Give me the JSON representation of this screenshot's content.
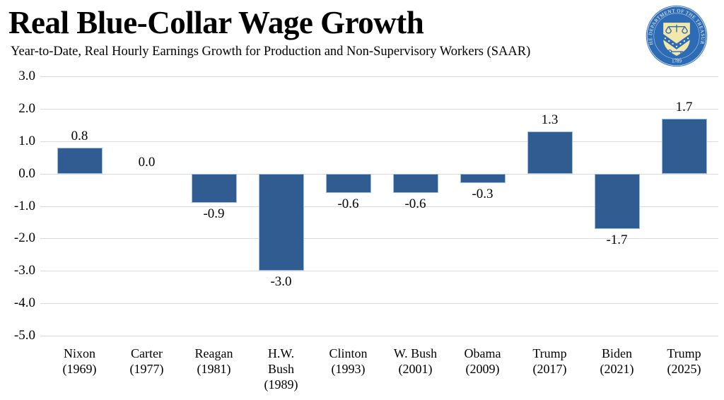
{
  "header": {
    "title": "Real Blue-Collar Wage Growth",
    "subtitle": "Year-to-Date, Real Hourly Earnings Growth for Production and Non-Supervisory Workers (SAAR)"
  },
  "seal": {
    "ring_text": "THE DEPARTMENT OF THE TREASURY",
    "year": "1789",
    "colors": {
      "disc": "#2d6cb5",
      "emblem": "#f3e7a9",
      "text": "#ffffff"
    }
  },
  "chart_data": {
    "type": "bar",
    "title": "Real Blue-Collar Wage Growth",
    "subtitle": "Year-to-Date, Real Hourly Earnings Growth for Production and Non-Supervisory Workers (SAAR)",
    "categories": [
      "Nixon\n(1969)",
      "Carter\n(1977)",
      "Reagan\n(1981)",
      "H.W.\nBush\n(1989)",
      "Clinton\n(1993)",
      "W. Bush\n(2001)",
      "Obama\n(2009)",
      "Trump\n(2017)",
      "Biden\n(2021)",
      "Trump\n(2025)"
    ],
    "values": [
      0.8,
      0.0,
      -0.9,
      -3.0,
      -0.6,
      -0.6,
      -0.3,
      1.3,
      -1.7,
      1.7
    ],
    "value_labels": [
      "0.8",
      "0.0",
      "-0.9",
      "-3.0",
      "-0.6",
      "-0.6",
      "-0.3",
      "1.3",
      "-1.7",
      "1.7"
    ],
    "xlabel": "",
    "ylabel": "",
    "ylim": [
      -5,
      3
    ],
    "yticks": [
      3,
      2,
      1,
      0,
      -1,
      -2,
      -3,
      -4,
      -5
    ],
    "grid": true,
    "legend": false,
    "bar_color": "#305c92",
    "bar_border_color": "#9cc0e0",
    "grid_color": "#d9d9d9"
  }
}
